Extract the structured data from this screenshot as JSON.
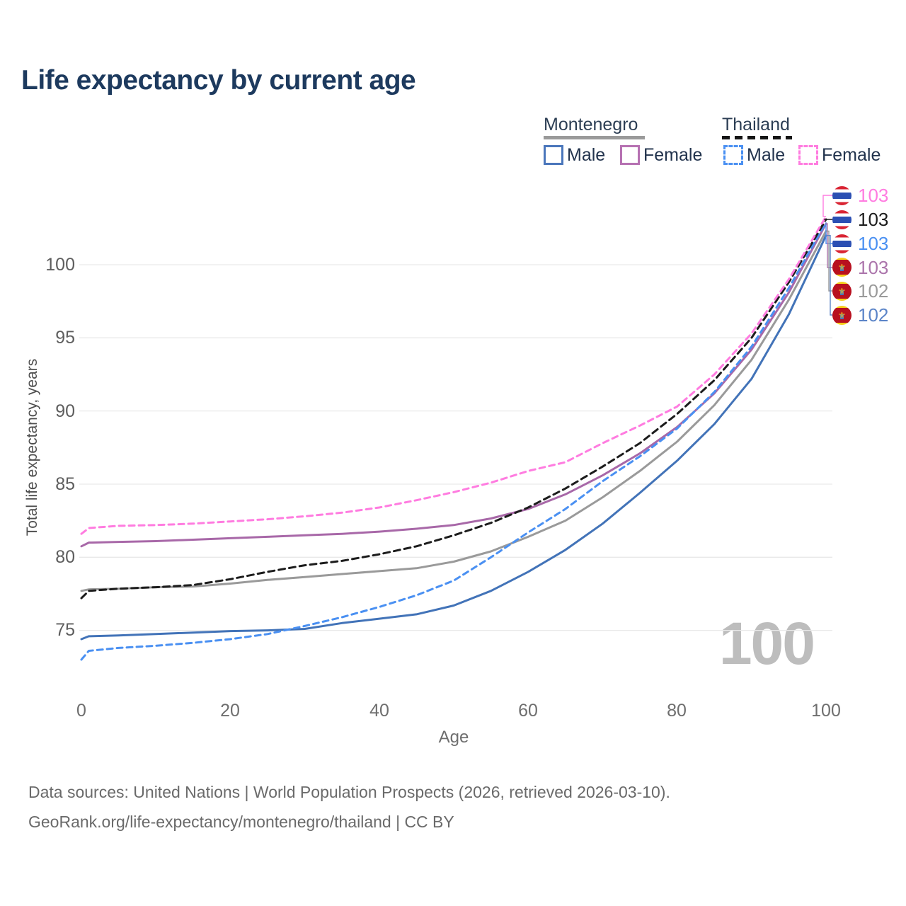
{
  "title": "Life expectancy by current age",
  "legend": {
    "groups": [
      {
        "country": "Montenegro",
        "line_color": "#9a9a9a",
        "line_style": "solid",
        "items": [
          {
            "label": "Male",
            "color": "#4a76bb",
            "style": "solid"
          },
          {
            "label": "Female",
            "color": "#b671b2",
            "style": "solid"
          }
        ]
      },
      {
        "country": "Thailand",
        "line_color": "#1c1c1c",
        "line_style": "dashed",
        "items": [
          {
            "label": "Male",
            "color": "#4a90f2",
            "style": "dashed"
          },
          {
            "label": "Female",
            "color": "#ff7ce0",
            "style": "dashed"
          }
        ]
      }
    ]
  },
  "watermark": "100",
  "footer": {
    "line1": "Data sources: United Nations | World Population Prospects (2026, retrieved 2026-03-10).",
    "line2": "GeoRank.org/life-expectancy/montenegro/thailand | CC BY"
  },
  "chart_data": {
    "type": "line",
    "title": "Life expectancy by current age",
    "xlabel": "Age",
    "ylabel": "Total life expectancy, years",
    "x_ticks": [
      0,
      20,
      40,
      60,
      80,
      100
    ],
    "y_ticks": [
      75,
      80,
      85,
      90,
      95,
      100
    ],
    "xlim": [
      0,
      100
    ],
    "ylim": [
      72.5,
      104
    ],
    "grid": "horizontal",
    "x": [
      0,
      1,
      5,
      10,
      15,
      20,
      25,
      30,
      35,
      40,
      45,
      50,
      55,
      60,
      65,
      70,
      75,
      80,
      85,
      90,
      95,
      100
    ],
    "series": [
      {
        "name": "Thailand Female",
        "country": "Thailand",
        "sex": "Female",
        "style": "dashed",
        "color": "#ff7ce0",
        "dash": "8 6",
        "flag": "thailand-flag",
        "end_label": "103",
        "end_label_color": "#ff7ce0",
        "values": [
          81.6,
          82.0,
          82.15,
          82.2,
          82.3,
          82.45,
          82.6,
          82.8,
          83.05,
          83.4,
          83.9,
          84.45,
          85.1,
          85.9,
          86.5,
          87.8,
          89.0,
          90.3,
          92.5,
          95.3,
          99.0,
          103.3
        ]
      },
      {
        "name": "Thailand Total",
        "country": "Thailand",
        "sex": "Both",
        "style": "dashed",
        "color": "#1c1c1c",
        "dash": "9 6",
        "flag": "thailand-flag",
        "end_label": "103",
        "end_label_color": "#1c1c1c",
        "values": [
          77.2,
          77.7,
          77.85,
          77.95,
          78.1,
          78.5,
          79.0,
          79.45,
          79.75,
          80.2,
          80.75,
          81.5,
          82.35,
          83.4,
          84.7,
          86.2,
          87.8,
          89.8,
          92.1,
          95.0,
          98.8,
          103.1
        ]
      },
      {
        "name": "Thailand Male",
        "country": "Thailand",
        "sex": "Male",
        "style": "dashed",
        "color": "#4a90f2",
        "dash": "8 6",
        "flag": "thailand-flag",
        "end_label": "103",
        "end_label_color": "#4a90f2",
        "values": [
          73.0,
          73.6,
          73.8,
          73.95,
          74.15,
          74.4,
          74.75,
          75.3,
          75.9,
          76.6,
          77.4,
          78.4,
          80.0,
          81.7,
          83.3,
          85.2,
          86.9,
          88.8,
          91.3,
          94.4,
          98.4,
          102.9
        ]
      },
      {
        "name": "Montenegro Female",
        "country": "Montenegro",
        "sex": "Female",
        "style": "solid",
        "color": "#a868a8",
        "dash": "",
        "flag": "montenegro-flag",
        "end_label": "103",
        "end_label_color": "#ab74ab",
        "values": [
          80.75,
          81.0,
          81.05,
          81.1,
          81.2,
          81.3,
          81.4,
          81.5,
          81.6,
          81.75,
          81.95,
          82.2,
          82.65,
          83.3,
          84.3,
          85.6,
          87.1,
          88.9,
          91.2,
          94.2,
          98.1,
          102.8
        ]
      },
      {
        "name": "Montenegro Total",
        "country": "Montenegro",
        "sex": "Both",
        "style": "solid",
        "color": "#9a9a9a",
        "dash": "",
        "flag": "montenegro-flag",
        "end_label": "102",
        "end_label_color": "#9a9a9a",
        "values": [
          77.7,
          77.8,
          77.85,
          77.95,
          78.0,
          78.2,
          78.45,
          78.65,
          78.85,
          79.05,
          79.25,
          79.7,
          80.4,
          81.4,
          82.5,
          84.1,
          85.9,
          87.9,
          90.4,
          93.5,
          97.6,
          102.3
        ]
      },
      {
        "name": "Montenegro Male",
        "country": "Montenegro",
        "sex": "Male",
        "style": "solid",
        "color": "#4273b8",
        "dash": "",
        "flag": "montenegro-flag",
        "end_label": "102",
        "end_label_color": "#5b84c8",
        "values": [
          74.4,
          74.6,
          74.65,
          74.75,
          74.85,
          74.95,
          75.0,
          75.1,
          75.5,
          75.8,
          76.1,
          76.7,
          77.7,
          79.0,
          80.5,
          82.3,
          84.4,
          86.6,
          89.1,
          92.2,
          96.6,
          102.0
        ]
      }
    ]
  }
}
